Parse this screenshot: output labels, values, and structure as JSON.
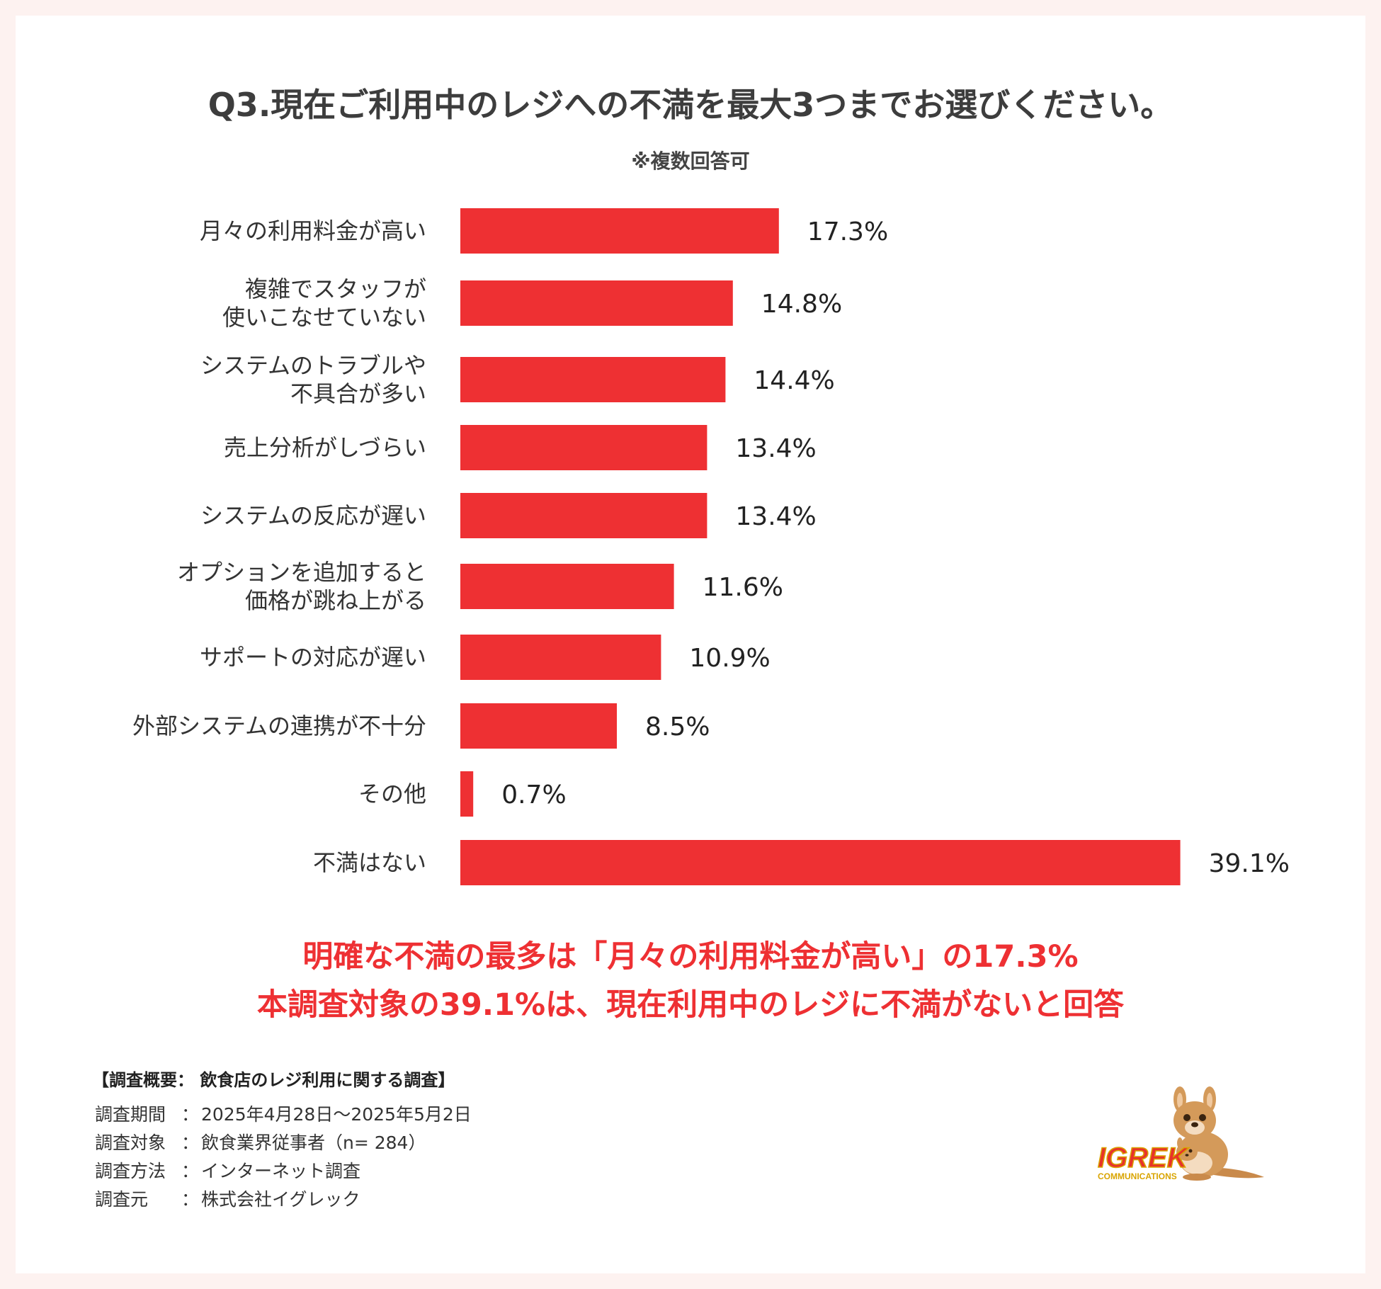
{
  "title": "Q3.現在ご利用中のレジへの不満を最大3つまでお選びください。",
  "note": "※複数回答可",
  "accent_color": "#ee3033",
  "chart_data": {
    "type": "bar",
    "orientation": "horizontal",
    "categories": [
      [
        "月々の利用料金が高い"
      ],
      [
        "複雑でスタッフが",
        "使いこなせていない"
      ],
      [
        "システムのトラブルや",
        "不具合が多い"
      ],
      [
        "売上分析がしづらい"
      ],
      [
        "システムの反応が遅い"
      ],
      [
        "オプションを追加すると",
        "価格が跳ね上がる"
      ],
      [
        "サポートの対応が遅い"
      ],
      [
        "外部システムの連携が不十分"
      ],
      [
        "その他"
      ],
      [
        "不満はない"
      ]
    ],
    "values": [
      17.3,
      14.8,
      14.4,
      13.4,
      13.4,
      11.6,
      10.9,
      8.5,
      0.7,
      39.1
    ],
    "value_labels": [
      "17.3%",
      "14.8%",
      "14.4%",
      "13.4%",
      "13.4%",
      "11.6%",
      "10.9%",
      "8.5%",
      "0.7%",
      "39.1%"
    ],
    "xlim": [
      0,
      40
    ],
    "grid": false,
    "legend": "none",
    "bar_color": "#ee3033"
  },
  "conclusion": {
    "line1": "明確な不満の最多は「月々の利用料金が高い」の17.3%",
    "line2": "本調査対象の39.1%は、現在利用中のレジに不満がないと回答",
    "color": "#ee3033"
  },
  "survey": {
    "heading": "【調査概要： 飲食店のレジ利用に関する調査】",
    "rows": [
      {
        "key": "調査期間",
        "sep": "：",
        "value": "2025年4月28日〜2025年5月2日"
      },
      {
        "key": "調査対象",
        "sep": "：",
        "value": "飲食業界従事者（n= 284）"
      },
      {
        "key": "調査方法",
        "sep": "：",
        "value": "インターネット調査"
      },
      {
        "key": "調査元",
        "sep": "：",
        "value": "株式会社イグレック"
      }
    ]
  },
  "logo": {
    "brand": "IGREK",
    "sub": "COMMUNICATIONS",
    "icon": "kangaroo-icon",
    "brand_color": "#e8332a",
    "sub_color": "#d9a400"
  }
}
